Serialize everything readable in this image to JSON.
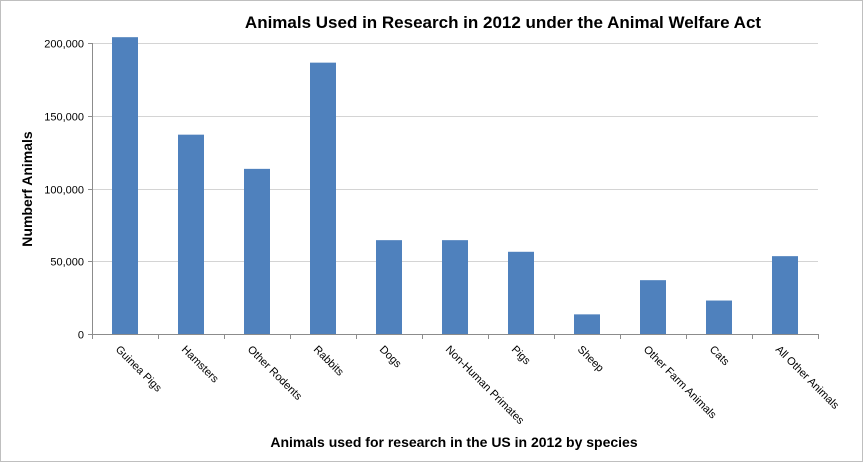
{
  "chart_data": {
    "type": "bar",
    "title": "Animals Used in Research in 2012 under the Animal Welfare Act",
    "xlabel": "Animals used for research in the US in 2012 by species",
    "ylabel": "Numberf Animals",
    "categories": [
      "Guinea Pigs",
      "Hamsters",
      "Other Rodents",
      "Rabbits",
      "Dogs",
      "Non-Human Primates",
      "Pigs",
      "Sheep",
      "Other Farm Animals",
      "Cats",
      "All Other Animals"
    ],
    "values": [
      204000,
      137000,
      113500,
      186500,
      64500,
      64500,
      56500,
      13500,
      37000,
      23000,
      53500
    ],
    "ylim": [
      0,
      200000
    ],
    "yticks": [
      0,
      50000,
      100000,
      150000,
      200000
    ],
    "ytick_labels": [
      "0",
      "50,000",
      "100,000",
      "150,000",
      "200,000"
    ],
    "grid": true,
    "legend": "none",
    "bar_color": "#4f81bd"
  }
}
